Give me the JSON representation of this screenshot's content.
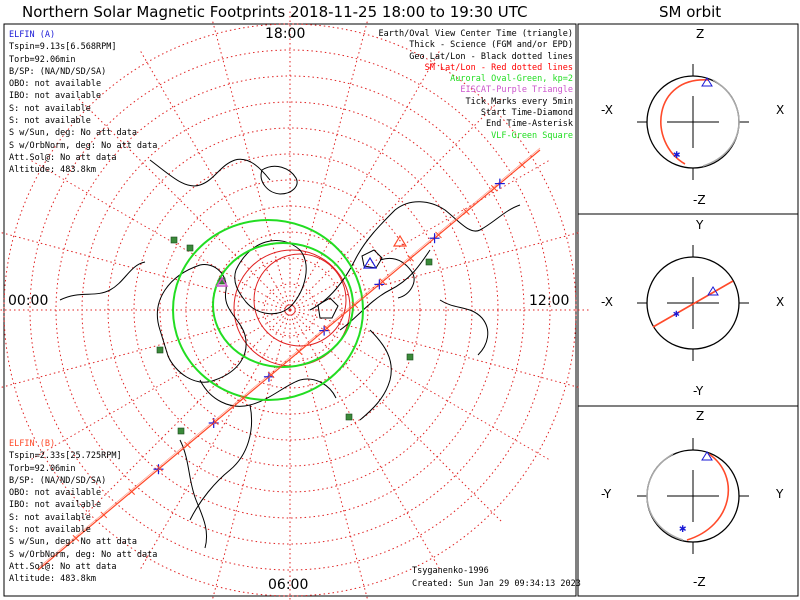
{
  "title": "Northern Solar Magnetic Footprints 2018-11-25 18:00 to 19:30 UTC",
  "orbit_title": "SM orbit",
  "hour_labels": {
    "top": "18:00",
    "left": "00:00",
    "right": "12:00",
    "bottom": "06:00"
  },
  "elfin_a": {
    "name": "ELFIN (A)",
    "lines": [
      "Tspin=9.13s[6.568RPM]",
      "Torb=92.06min",
      "B/SP: (NA/ND/SD/SA)",
      "OBO: not available",
      "IBO: not available",
      "S: not available",
      "S: not available",
      "S w/Sun, deg: No att data",
      "S w/OrbNorm, deg: No att data",
      "Att.Sol@: No att data",
      "Altitude: 483.8km"
    ],
    "color": "#1a1ad6"
  },
  "elfin_b": {
    "name": "ELFIN (B)",
    "lines": [
      "Tspin=2.33s[25.725RPM]",
      "Torb=92.06min",
      "B/SP: (NA/ND/SD/SA)",
      "OBO: not available",
      "IBO: not available",
      "S: not available",
      "S: not available",
      "S w/Sun, deg: No att data",
      "S w/OrbNorm, deg: No att data",
      "Att.Sol@: No att data",
      "Altitude: 483.8km"
    ],
    "color": "#ff4a2a"
  },
  "legend": [
    {
      "text": "Earth/Oval View Center Time (triangle)",
      "color": "#000000"
    },
    {
      "text": "Thick - Science (FGM and/or EPD)",
      "color": "#000000"
    },
    {
      "text": "Geo Lat/Lon - Black dotted lines",
      "color": "#000000"
    },
    {
      "text": "SM Lat/Lon - Red dotted lines",
      "color": "#ff0000"
    },
    {
      "text": "Auroral Oval-Green, kp=2",
      "color": "#22dd22"
    },
    {
      "text": "EISCAT-Purple Triangle",
      "color": "#cc55cc"
    },
    {
      "text": "Tick Marks every 5min",
      "color": "#000000"
    },
    {
      "text": "Start Time-Diamond",
      "color": "#000000"
    },
    {
      "text": "End Time-Asterisk",
      "color": "#000000"
    },
    {
      "text": "VLF-Green Square",
      "color": "#22dd22"
    }
  ],
  "footer": {
    "model": "Tsyganenko-1996",
    "created": "Created: Sun Jan 29 09:34:13 2023"
  },
  "orbit_panels": [
    {
      "top": "Z",
      "bottom": "-Z",
      "left": "-X",
      "right": "X"
    },
    {
      "top": "Y",
      "bottom": "-Y",
      "left": "-X",
      "right": "X"
    },
    {
      "top": "Z",
      "bottom": "-Z",
      "left": "-Y",
      "right": "Y"
    }
  ],
  "colors": {
    "elfin_a": "#1a1ad6",
    "elfin_b": "#ff4a2a",
    "oval": "#22dd22",
    "sm_grid": "#e02020",
    "vlf": "#3a8a3a",
    "eiscat": "#cc55cc"
  }
}
